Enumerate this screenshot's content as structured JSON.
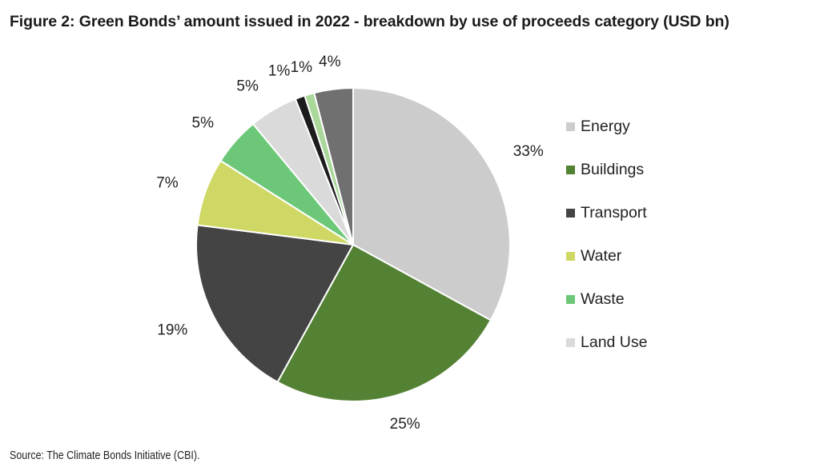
{
  "figure": {
    "title": "Figure 2: Green Bonds’ amount issued in 2022 - breakdown by use of proceeds category (USD bn)",
    "source": "Source: The Climate Bonds Initiative (CBI)."
  },
  "chart_data": {
    "type": "pie",
    "title": "Figure 2: Green Bonds’ amount issued in 2022 - breakdown by use of proceeds category (USD bn)",
    "legend_position": "right",
    "start_angle": "12 o'clock, clockwise",
    "slices": [
      {
        "label": "Energy",
        "value": 33,
        "display": "33%",
        "color": "#cccccc",
        "in_legend": true
      },
      {
        "label": "Buildings",
        "value": 25,
        "display": "25%",
        "color": "#548235",
        "in_legend": true
      },
      {
        "label": "Transport",
        "value": 19,
        "display": "19%",
        "color": "#444444",
        "in_legend": true
      },
      {
        "label": "Water",
        "value": 7,
        "display": "7%",
        "color": "#d0d865",
        "in_legend": true
      },
      {
        "label": "Waste",
        "value": 5,
        "display": "5%",
        "color": "#6cc878",
        "in_legend": true
      },
      {
        "label": "Land Use",
        "value": 5,
        "display": "5%",
        "color": "#dadada",
        "in_legend": true
      },
      {
        "label": "",
        "value": 1,
        "display": "1%",
        "color": "#1c1c1c",
        "in_legend": false
      },
      {
        "label": "",
        "value": 1,
        "display": "1%",
        "color": "#a9d89a",
        "in_legend": false
      },
      {
        "label": "",
        "value": 4,
        "display": "4%",
        "color": "#707070",
        "in_legend": false
      }
    ]
  }
}
